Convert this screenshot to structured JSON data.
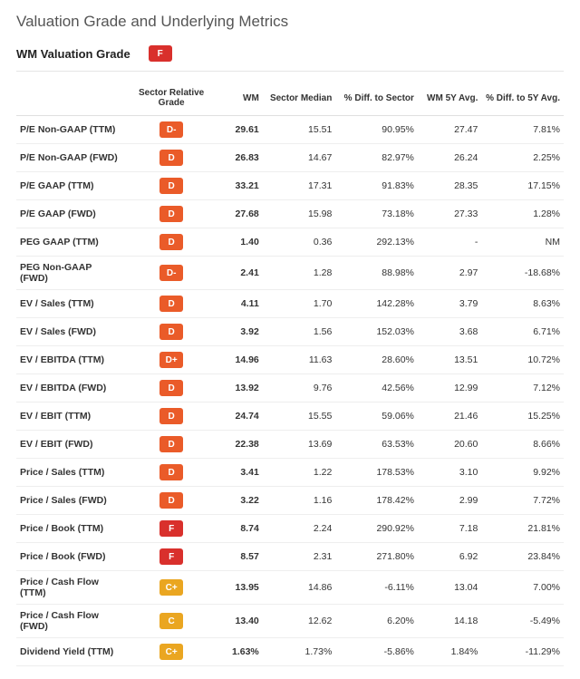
{
  "title": "Valuation Grade and Underlying Metrics",
  "summary": {
    "label": "WM Valuation Grade",
    "grade": "F",
    "grade_color": "#d9302c"
  },
  "grade_colors": {
    "D-": "#ea5b29",
    "D": "#ea5b29",
    "D+": "#ea5b29",
    "F": "#d9302c",
    "C": "#eaa621",
    "C+": "#eaa621"
  },
  "columns": [
    "",
    "Sector Relative Grade",
    "WM",
    "Sector Median",
    "% Diff. to Sector",
    "WM 5Y Avg.",
    "% Diff. to 5Y Avg."
  ],
  "rows": [
    {
      "metric": "P/E Non-GAAP (TTM)",
      "grade": "D-",
      "wm": "29.61",
      "median": "15.51",
      "diff": "90.95%",
      "avg": "27.47",
      "diff5": "7.81%"
    },
    {
      "metric": "P/E Non-GAAP (FWD)",
      "grade": "D",
      "wm": "26.83",
      "median": "14.67",
      "diff": "82.97%",
      "avg": "26.24",
      "diff5": "2.25%"
    },
    {
      "metric": "P/E GAAP (TTM)",
      "grade": "D",
      "wm": "33.21",
      "median": "17.31",
      "diff": "91.83%",
      "avg": "28.35",
      "diff5": "17.15%"
    },
    {
      "metric": "P/E GAAP (FWD)",
      "grade": "D",
      "wm": "27.68",
      "median": "15.98",
      "diff": "73.18%",
      "avg": "27.33",
      "diff5": "1.28%"
    },
    {
      "metric": "PEG GAAP (TTM)",
      "grade": "D",
      "wm": "1.40",
      "median": "0.36",
      "diff": "292.13%",
      "avg": "-",
      "diff5": "NM"
    },
    {
      "metric": "PEG Non-GAAP (FWD)",
      "grade": "D-",
      "wm": "2.41",
      "median": "1.28",
      "diff": "88.98%",
      "avg": "2.97",
      "diff5": "-18.68%"
    },
    {
      "metric": "EV / Sales (TTM)",
      "grade": "D",
      "wm": "4.11",
      "median": "1.70",
      "diff": "142.28%",
      "avg": "3.79",
      "diff5": "8.63%"
    },
    {
      "metric": "EV / Sales (FWD)",
      "grade": "D",
      "wm": "3.92",
      "median": "1.56",
      "diff": "152.03%",
      "avg": "3.68",
      "diff5": "6.71%"
    },
    {
      "metric": "EV / EBITDA (TTM)",
      "grade": "D+",
      "wm": "14.96",
      "median": "11.63",
      "diff": "28.60%",
      "avg": "13.51",
      "diff5": "10.72%"
    },
    {
      "metric": "EV / EBITDA (FWD)",
      "grade": "D",
      "wm": "13.92",
      "median": "9.76",
      "diff": "42.56%",
      "avg": "12.99",
      "diff5": "7.12%"
    },
    {
      "metric": "EV / EBIT (TTM)",
      "grade": "D",
      "wm": "24.74",
      "median": "15.55",
      "diff": "59.06%",
      "avg": "21.46",
      "diff5": "15.25%"
    },
    {
      "metric": "EV / EBIT (FWD)",
      "grade": "D",
      "wm": "22.38",
      "median": "13.69",
      "diff": "63.53%",
      "avg": "20.60",
      "diff5": "8.66%"
    },
    {
      "metric": "Price / Sales (TTM)",
      "grade": "D",
      "wm": "3.41",
      "median": "1.22",
      "diff": "178.53%",
      "avg": "3.10",
      "diff5": "9.92%"
    },
    {
      "metric": "Price / Sales (FWD)",
      "grade": "D",
      "wm": "3.22",
      "median": "1.16",
      "diff": "178.42%",
      "avg": "2.99",
      "diff5": "7.72%"
    },
    {
      "metric": "Price / Book (TTM)",
      "grade": "F",
      "wm": "8.74",
      "median": "2.24",
      "diff": "290.92%",
      "avg": "7.18",
      "diff5": "21.81%"
    },
    {
      "metric": "Price / Book (FWD)",
      "grade": "F",
      "wm": "8.57",
      "median": "2.31",
      "diff": "271.80%",
      "avg": "6.92",
      "diff5": "23.84%"
    },
    {
      "metric": "Price / Cash Flow (TTM)",
      "grade": "C+",
      "wm": "13.95",
      "median": "14.86",
      "diff": "-6.11%",
      "avg": "13.04",
      "diff5": "7.00%"
    },
    {
      "metric": "Price / Cash Flow (FWD)",
      "grade": "C",
      "wm": "13.40",
      "median": "12.62",
      "diff": "6.20%",
      "avg": "14.18",
      "diff5": "-5.49%"
    },
    {
      "metric": "Dividend Yield (TTM)",
      "grade": "C+",
      "wm": "1.63%",
      "median": "1.73%",
      "diff": "-5.86%",
      "avg": "1.84%",
      "diff5": "-11.29%"
    }
  ]
}
